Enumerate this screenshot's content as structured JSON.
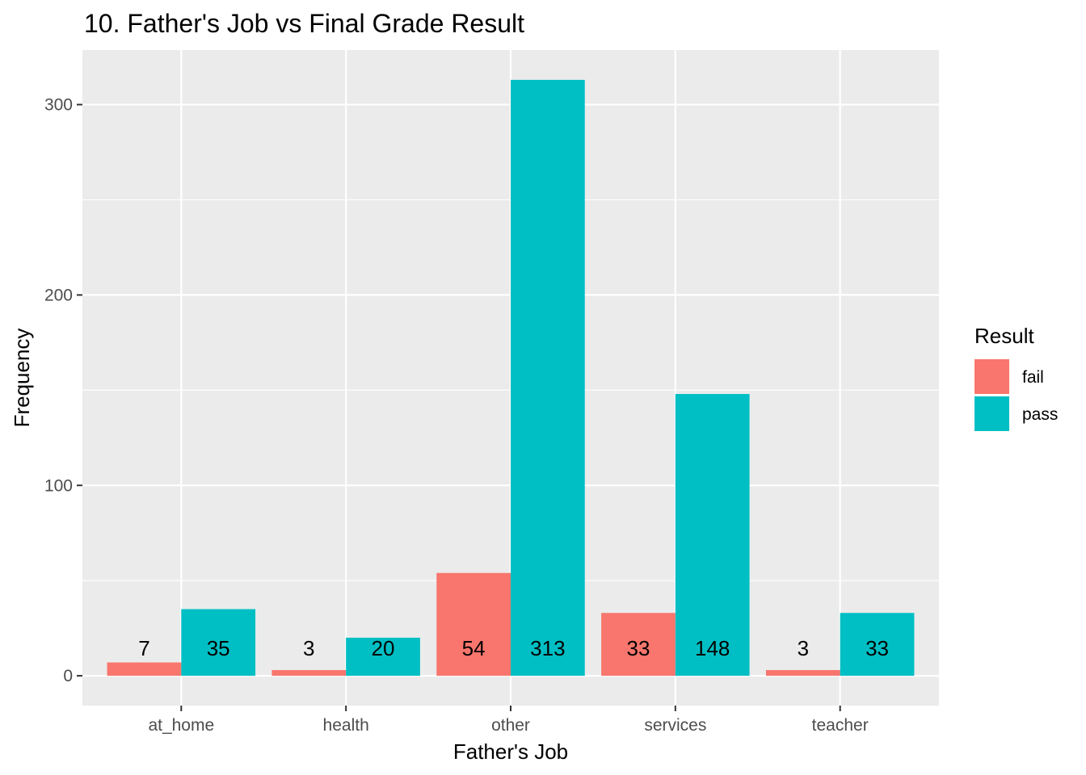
{
  "chart_data": {
    "type": "bar",
    "title": "10. Father's Job vs Final Grade Result",
    "xlabel": "Father's Job",
    "ylabel": "Frequency",
    "categories": [
      "at_home",
      "health",
      "other",
      "services",
      "teacher"
    ],
    "series": [
      {
        "name": "fail",
        "color": "#F8766D",
        "values": [
          7,
          3,
          54,
          33,
          3
        ]
      },
      {
        "name": "pass",
        "color": "#00BFC4",
        "values": [
          35,
          20,
          313,
          148,
          33
        ]
      }
    ],
    "ylim": [
      -15.65,
      328.65
    ],
    "yticks": [
      0,
      100,
      200,
      300
    ],
    "grid": true,
    "legend": {
      "title": "Result",
      "placement": "right"
    }
  }
}
